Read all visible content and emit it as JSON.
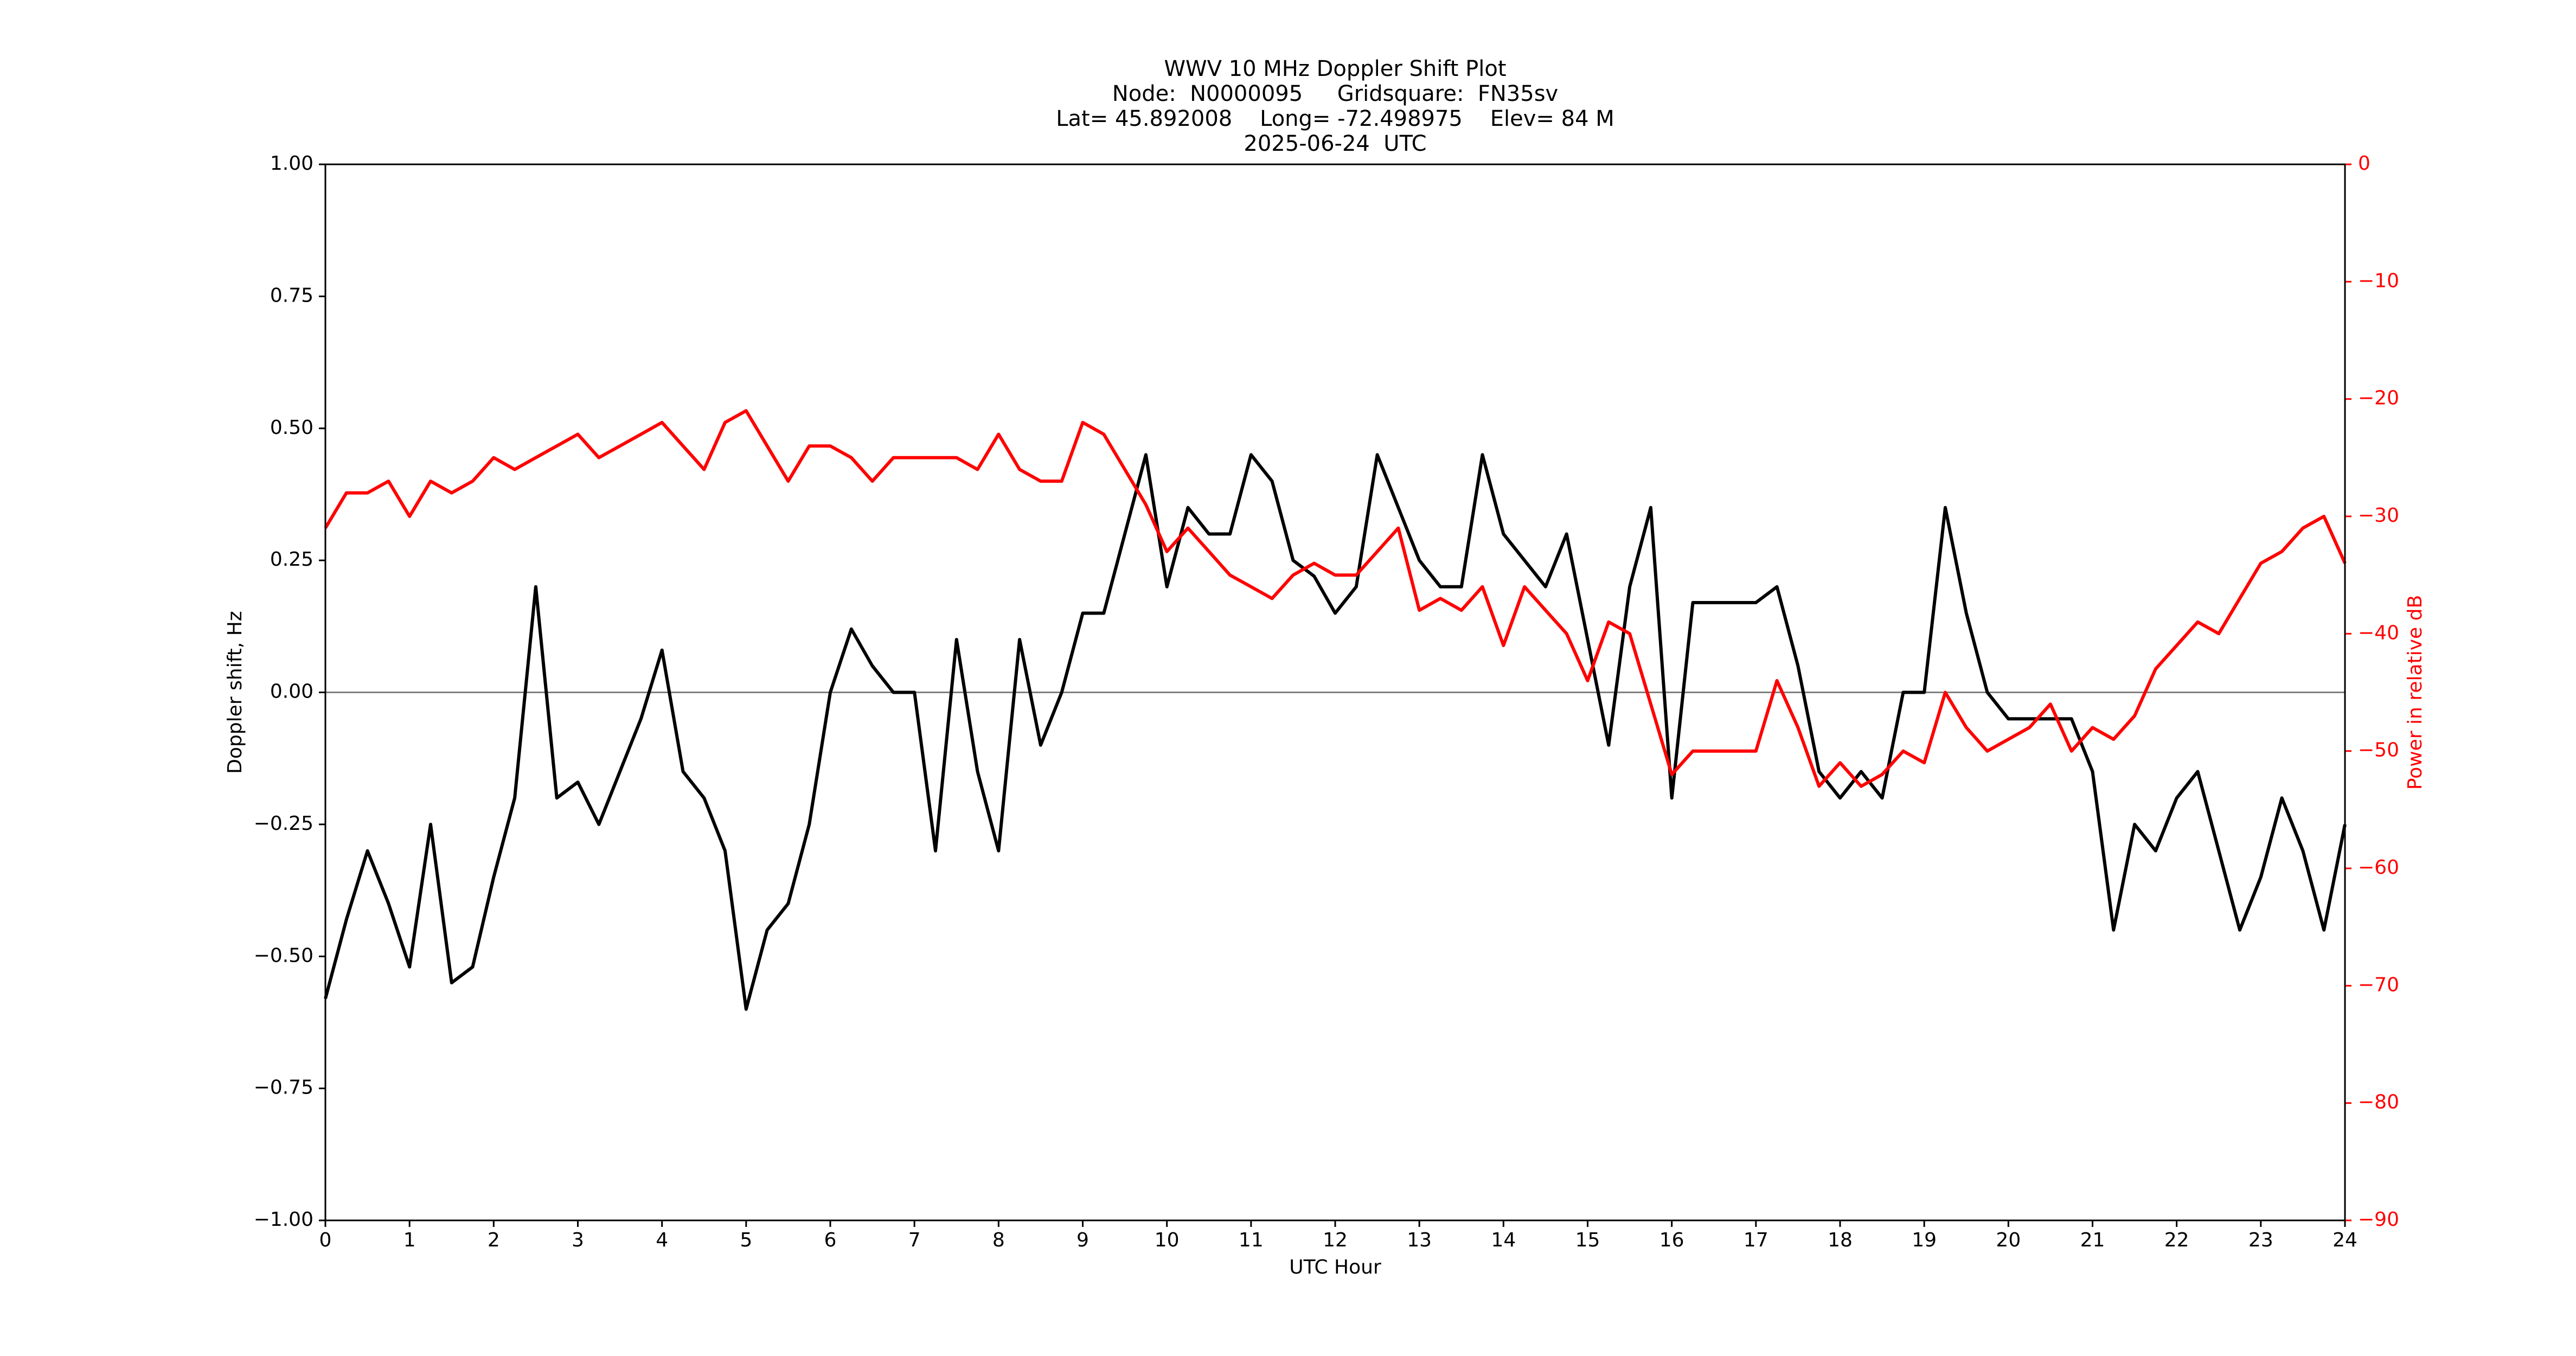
{
  "chart_data": {
    "type": "line",
    "title": [
      "WWV 10 MHz Doppler Shift Plot",
      "Node:  N0000095     Gridsquare:  FN35sv",
      "Lat= 45.892008    Long= -72.498975    Elev= 84 M",
      "2025-06-24  UTC"
    ],
    "xlabel": "UTC Hour",
    "ylabel": "Doppler shift, Hz",
    "y2label": "Power in relative dB",
    "y2color": "#ff0000",
    "x": [
      0,
      0.25,
      0.5,
      0.75,
      1,
      1.25,
      1.5,
      1.75,
      2,
      2.25,
      2.5,
      2.75,
      3,
      3.25,
      3.5,
      3.75,
      4,
      4.25,
      4.5,
      4.75,
      5,
      5.25,
      5.5,
      5.75,
      6,
      6.25,
      6.5,
      6.75,
      7,
      7.25,
      7.5,
      7.75,
      8,
      8.25,
      8.5,
      8.75,
      9,
      9.25,
      9.5,
      9.75,
      10,
      10.25,
      10.5,
      10.75,
      11,
      11.25,
      11.5,
      11.75,
      12,
      12.25,
      12.5,
      12.75,
      13,
      13.25,
      13.5,
      13.75,
      14,
      14.25,
      14.5,
      14.75,
      15,
      15.25,
      15.5,
      15.75,
      16,
      16.25,
      16.5,
      16.75,
      17,
      17.25,
      17.5,
      17.75,
      18,
      18.25,
      18.5,
      18.75,
      19,
      19.25,
      19.5,
      19.75,
      20,
      20.25,
      20.5,
      20.75,
      21,
      21.25,
      21.5,
      21.75,
      22,
      22.25,
      22.5,
      22.75,
      23,
      23.25,
      23.5,
      23.75,
      24
    ],
    "series": [
      {
        "color": "#000000",
        "values": [
          -0.58,
          -0.43,
          -0.3,
          -0.4,
          -0.52,
          -0.25,
          -0.55,
          -0.52,
          -0.35,
          -0.2,
          0.2,
          -0.2,
          -0.17,
          -0.25,
          -0.15,
          -0.05,
          0.08,
          -0.15,
          -0.2,
          -0.3,
          -0.6,
          -0.45,
          -0.4,
          -0.25,
          0.0,
          0.12,
          0.05,
          0.0,
          0.0,
          -0.3,
          0.1,
          -0.15,
          -0.3,
          0.1,
          -0.1,
          0.0,
          0.15,
          0.15,
          0.3,
          0.45,
          0.2,
          0.35,
          0.3,
          0.3,
          0.45,
          0.4,
          0.25,
          0.22,
          0.15,
          0.2,
          0.45,
          0.35,
          0.25,
          0.2,
          0.2,
          0.45,
          0.3,
          0.25,
          0.2,
          0.3,
          0.1,
          -0.1,
          0.2,
          0.35,
          -0.2,
          0.17,
          0.17,
          0.17,
          0.17,
          0.2,
          0.05,
          -0.15,
          -0.2,
          -0.15,
          -0.2,
          0.0,
          0.0,
          0.35,
          0.15,
          0.0,
          -0.05,
          -0.05,
          -0.05,
          -0.05,
          -0.15,
          -0.45,
          -0.25,
          -0.3,
          -0.2,
          -0.15,
          -0.3,
          -0.45,
          -0.35,
          -0.2,
          -0.3,
          -0.45,
          -0.25
        ]
      },
      {
        "color": "#ff0000",
        "axis": "y2",
        "values": [
          -31,
          -28,
          -28,
          -27,
          -30,
          -27,
          -28,
          -27,
          -25,
          -26,
          -25,
          -24,
          -23,
          -25,
          -24,
          -23,
          -22,
          -24,
          -26,
          -22,
          -21,
          -24,
          -27,
          -24,
          -24,
          -25,
          -27,
          -25,
          -25,
          -25,
          -25,
          -26,
          -23,
          -26,
          -27,
          -27,
          -22,
          -23,
          -26,
          -29,
          -33,
          -31,
          -33,
          -35,
          -36,
          -37,
          -35,
          -34,
          -35,
          -35,
          -33,
          -31,
          -38,
          -37,
          -38,
          -36,
          -41,
          -36,
          -38,
          -40,
          -44,
          -39,
          -40,
          -46,
          -52,
          -50,
          -50,
          -50,
          -50,
          -44,
          -48,
          -53,
          -51,
          -53,
          -52,
          -50,
          -51,
          -45,
          -48,
          -50,
          -49,
          -48,
          -46,
          -50,
          -48,
          -49,
          -47,
          -43,
          -41,
          -39,
          -40,
          -37,
          -34,
          -33,
          -31,
          -30,
          -34
        ]
      }
    ],
    "hline": 0,
    "hline_color": "#808080",
    "xlim": [
      0,
      24
    ],
    "xticks": [
      0,
      1,
      2,
      3,
      4,
      5,
      6,
      7,
      8,
      9,
      10,
      11,
      12,
      13,
      14,
      15,
      16,
      17,
      18,
      19,
      20,
      21,
      22,
      23,
      24
    ],
    "ylim": [
      -1,
      1
    ],
    "yticks": [
      {
        "value": -1,
        "label": "−1.00"
      },
      {
        "value": -0.75,
        "label": "−0.75"
      },
      {
        "value": -0.5,
        "label": "−0.50"
      },
      {
        "value": -0.25,
        "label": "−0.25"
      },
      {
        "value": 0,
        "label": "0.00"
      },
      {
        "value": 0.25,
        "label": "0.25"
      },
      {
        "value": 0.5,
        "label": "0.50"
      },
      {
        "value": 0.75,
        "label": "0.75"
      },
      {
        "value": 1,
        "label": "1.00"
      }
    ],
    "y2lim": [
      -90,
      0
    ],
    "y2ticks": [
      {
        "value": -90,
        "label": "−90"
      },
      {
        "value": -80,
        "label": "−80"
      },
      {
        "value": -70,
        "label": "−70"
      },
      {
        "value": -60,
        "label": "−60"
      },
      {
        "value": -50,
        "label": "−50"
      },
      {
        "value": -40,
        "label": "−40"
      },
      {
        "value": -30,
        "label": "−30"
      },
      {
        "value": -20,
        "label": "−20"
      },
      {
        "value": -10,
        "label": "−10"
      },
      0
    ]
  }
}
